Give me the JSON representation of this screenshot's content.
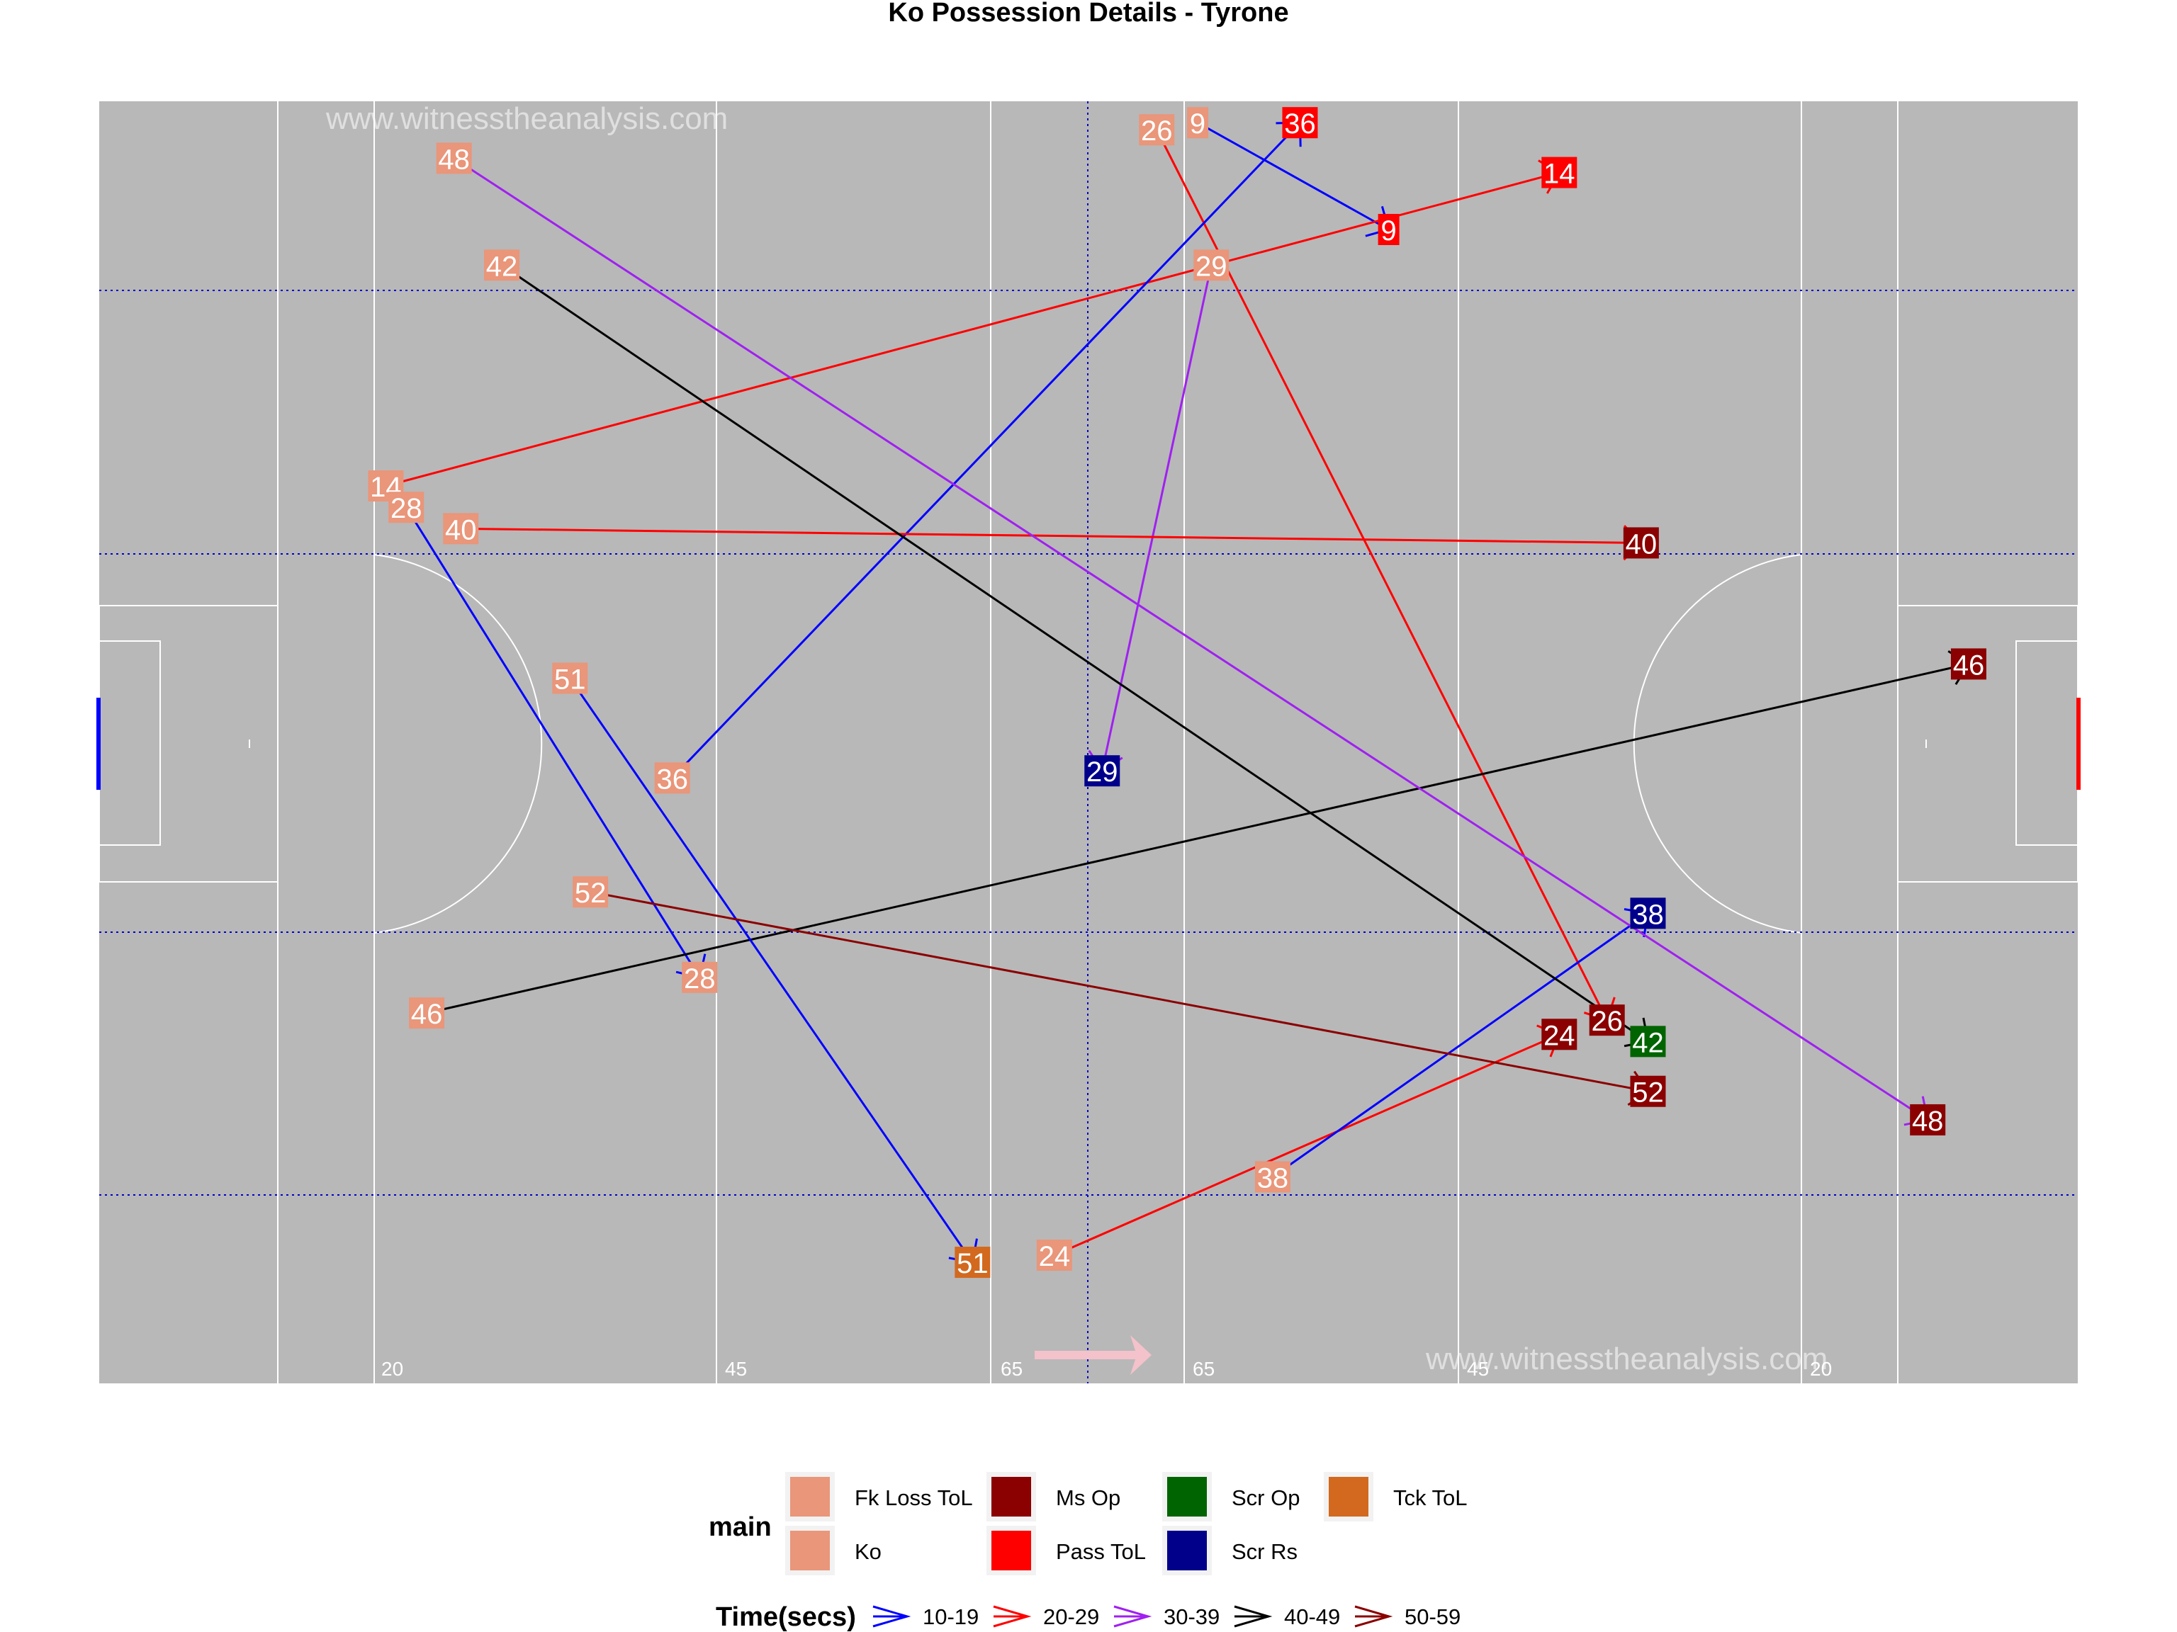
{
  "chart_data": {
    "type": "scatter",
    "title": "Ko Possession Details - Tyrone",
    "x_range": [
      0,
      145
    ],
    "y_range": [
      0,
      90
    ],
    "pitch_markings": [
      "20",
      "45",
      "65",
      "65",
      "45",
      "20"
    ],
    "watermark": "www.witnesstheanalysis.com",
    "events": [
      {
        "id": "9",
        "time": "10-19",
        "start": [
          80.5,
          88.5
        ],
        "end": [
          94.5,
          81
        ],
        "start_cat": "Ko",
        "end_cat": "Pass ToL"
      },
      {
        "id": "14",
        "time": "20-29",
        "start": [
          21,
          63
        ],
        "end": [
          107,
          85
        ],
        "start_cat": "Ko",
        "end_cat": "Pass ToL"
      },
      {
        "id": "24",
        "time": "20-29",
        "start": [
          70,
          9
        ],
        "end": [
          107,
          24.5
        ],
        "start_cat": "Ko",
        "end_cat": "Ms Op"
      },
      {
        "id": "26",
        "time": "20-29",
        "start": [
          77.5,
          88
        ],
        "end": [
          110.5,
          25.5
        ],
        "start_cat": "Ko",
        "end_cat": "Ms Op"
      },
      {
        "id": "28",
        "time": "10-19",
        "start": [
          22.5,
          61.5
        ],
        "end": [
          44,
          28.5
        ],
        "start_cat": "Ko",
        "end_cat": "Ko"
      },
      {
        "id": "29",
        "time": "30-39",
        "start": [
          81.5,
          78.5
        ],
        "end": [
          73.5,
          43
        ],
        "start_cat": "Ko",
        "end_cat": "Scr Rs"
      },
      {
        "id": "36",
        "time": "10-19",
        "start": [
          42,
          42.5
        ],
        "end": [
          88,
          88.5
        ],
        "start_cat": "Ko",
        "end_cat": "Pass ToL"
      },
      {
        "id": "38",
        "time": "10-19",
        "start": [
          86,
          14.5
        ],
        "end": [
          113.5,
          33
        ],
        "start_cat": "Ko",
        "end_cat": "Scr Rs"
      },
      {
        "id": "40",
        "time": "20-29",
        "start": [
          26.5,
          60
        ],
        "end": [
          113,
          59
        ],
        "start_cat": "Ko",
        "end_cat": "Ms Op"
      },
      {
        "id": "42",
        "time": "40-49",
        "start": [
          29.5,
          78.5
        ],
        "end": [
          113.5,
          24
        ],
        "start_cat": "Ko",
        "end_cat": "Scr Op"
      },
      {
        "id": "46",
        "time": "40-49",
        "start": [
          24,
          26
        ],
        "end": [
          137,
          50.5
        ],
        "start_cat": "Ko",
        "end_cat": "Ms Op"
      },
      {
        "id": "48",
        "time": "30-39",
        "start": [
          26,
          86
        ],
        "end": [
          134,
          18.5
        ],
        "start_cat": "Ko",
        "end_cat": "Ms Op"
      },
      {
        "id": "51",
        "time": "10-19",
        "start": [
          34.5,
          49.5
        ],
        "end": [
          64,
          8.5
        ],
        "start_cat": "Ko",
        "end_cat": "Tck ToL"
      },
      {
        "id": "52",
        "time": "50-59",
        "start": [
          36,
          34.5
        ],
        "end": [
          113.5,
          20.5
        ],
        "start_cat": "Ko",
        "end_cat": "Ms Op"
      }
    ],
    "legend": {
      "main_title": "main",
      "categories": [
        {
          "name": "Fk Loss ToL",
          "color": "#E9967A"
        },
        {
          "name": "Ko",
          "color": "#E9967A"
        },
        {
          "name": "Ms Op",
          "color": "#8B0000"
        },
        {
          "name": "Pass ToL",
          "color": "#FF0000"
        },
        {
          "name": "Scr Op",
          "color": "#006400"
        },
        {
          "name": "Scr Rs",
          "color": "#00008B"
        },
        {
          "name": "Tck ToL",
          "color": "#D2691E"
        }
      ],
      "time_title": "Time(secs)",
      "time_bins": [
        {
          "name": "10-19",
          "color": "#0000FF"
        },
        {
          "name": "20-29",
          "color": "#FF0000"
        },
        {
          "name": "30-39",
          "color": "#A020F0"
        },
        {
          "name": "40-49",
          "color": "#000000"
        },
        {
          "name": "50-59",
          "color": "#8B0000"
        }
      ]
    }
  }
}
